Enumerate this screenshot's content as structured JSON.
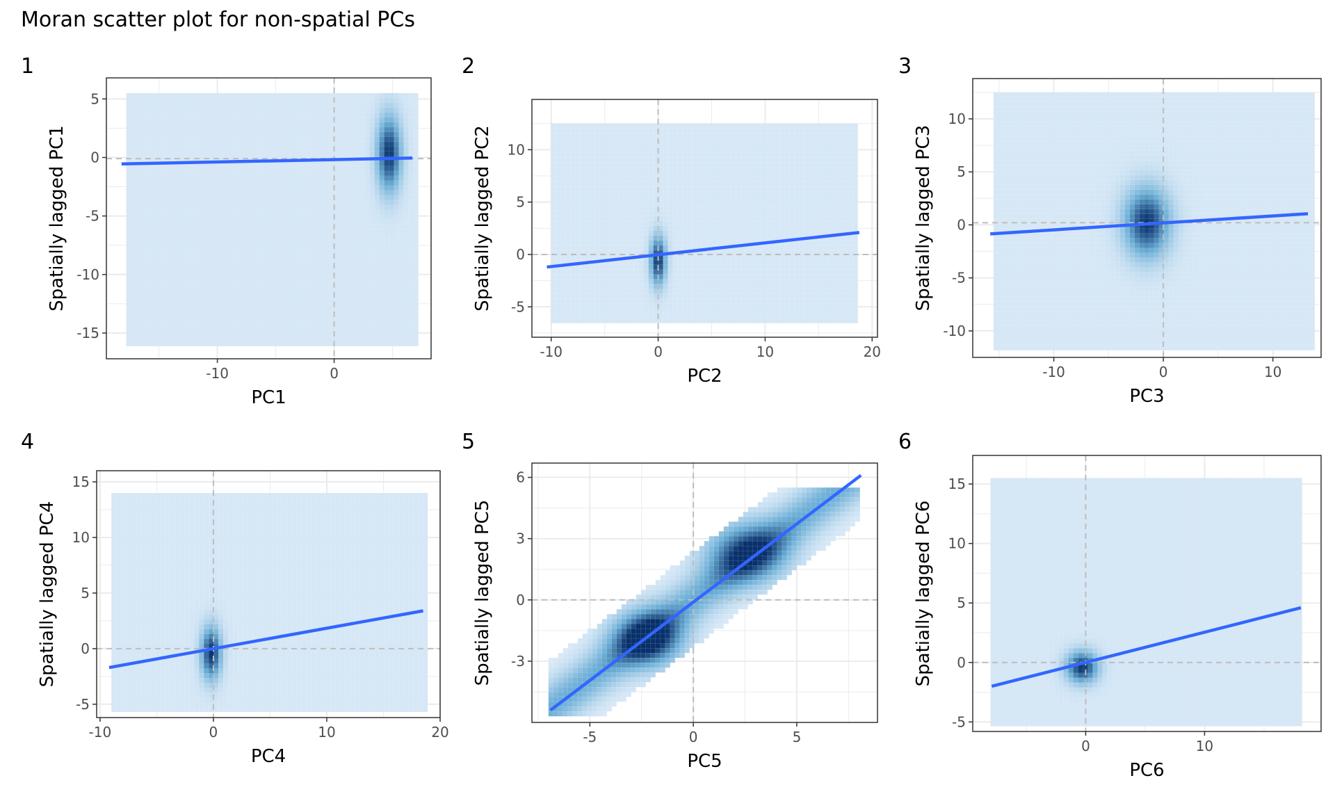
{
  "figure": {
    "title": "Moran scatter plot for non-spatial PCs"
  },
  "colors": {
    "fit_line": "#3366FF",
    "reference_line": "#BDBDBD",
    "density_low": "#EAF2FC",
    "density_high": "#08306B",
    "grid": "#EBEBEB",
    "panel_border": "#333333"
  },
  "chart_data": [
    {
      "panel": "1",
      "type": "scatter",
      "xlabel": "PC1",
      "ylabel": "Spatially lagged PC1",
      "xlim": [
        -19.5,
        8.3
      ],
      "ylim": [
        -17.2,
        6.8
      ],
      "xticks": [
        -10,
        0
      ],
      "yticks": [
        -15,
        -10,
        -5,
        0,
        5
      ],
      "x_range": [
        -17.8,
        6.8
      ],
      "y_range": [
        -16.0,
        5.5
      ],
      "fit_line": {
        "x": [
          -18.2,
          6.7
        ],
        "y": [
          -0.55,
          -0.05
        ]
      },
      "reference_lines": {
        "x": 0,
        "y": -0.1
      },
      "clusters": [
        {
          "x": 4.7,
          "y": 0.3,
          "sx": 0.7,
          "sy": 2.2,
          "w": 1.0
        }
      ]
    },
    {
      "panel": "2",
      "type": "scatter",
      "xlabel": "PC2",
      "ylabel": "Spatially lagged PC2",
      "xlim": [
        -11.8,
        20.5
      ],
      "ylim": [
        -7.9,
        14.8
      ],
      "xticks": [
        -10,
        0,
        10,
        20
      ],
      "yticks": [
        -5,
        0,
        5,
        10
      ],
      "x_range": [
        -10.0,
        18.5
      ],
      "y_range": [
        -6.5,
        12.5
      ],
      "fit_line": {
        "x": [
          -10.4,
          18.8
        ],
        "y": [
          -1.2,
          2.1
        ]
      },
      "reference_lines": {
        "x": 0,
        "y": 0
      },
      "clusters": [
        {
          "x": 0.0,
          "y": -0.6,
          "sx": 0.5,
          "sy": 1.6,
          "w": 1.0
        }
      ]
    },
    {
      "panel": "3",
      "type": "scatter",
      "xlabel": "PC3",
      "ylabel": "Spatially lagged PC3",
      "xlim": [
        -17.4,
        14.4
      ],
      "ylim": [
        -12.5,
        13.8
      ],
      "xticks": [
        -10,
        0,
        10
      ],
      "yticks": [
        -10,
        -5,
        0,
        5,
        10
      ],
      "x_range": [
        -15.5,
        13.5
      ],
      "y_range": [
        -11.5,
        12.5
      ],
      "fit_line": {
        "x": [
          -15.8,
          13.2
        ],
        "y": [
          -0.85,
          1.05
        ]
      },
      "reference_lines": {
        "x": 0,
        "y": 0.2
      },
      "clusters": [
        {
          "x": -1.5,
          "y": 0.2,
          "sx": 1.4,
          "sy": 2.2,
          "w": 1.0
        }
      ]
    },
    {
      "panel": "4",
      "type": "scatter",
      "xlabel": "PC4",
      "ylabel": "Spatially lagged PC4",
      "xlim": [
        -10.3,
        20.0
      ],
      "ylim": [
        -6.2,
        16.0
      ],
      "xticks": [
        -10,
        0,
        10,
        20
      ],
      "yticks": [
        -5,
        0,
        5,
        10,
        15
      ],
      "x_range": [
        -9.0,
        18.5
      ],
      "y_range": [
        -5.5,
        14.0
      ],
      "fit_line": {
        "x": [
          -9.2,
          18.5
        ],
        "y": [
          -1.7,
          3.4
        ]
      },
      "reference_lines": {
        "x": 0,
        "y": 0
      },
      "clusters": [
        {
          "x": -0.2,
          "y": -0.4,
          "sx": 0.6,
          "sy": 1.6,
          "w": 1.0
        }
      ]
    },
    {
      "panel": "5",
      "type": "scatter",
      "xlabel": "PC5",
      "ylabel": "Spatially lagged PC5",
      "xlim": [
        -7.8,
        8.9
      ],
      "ylim": [
        -6.0,
        6.7
      ],
      "xticks": [
        -5,
        0,
        5
      ],
      "yticks": [
        -3,
        0,
        3,
        6
      ],
      "x_range": [
        -7.0,
        8.0
      ],
      "y_range": [
        -5.5,
        5.5
      ],
      "fit_line": {
        "x": [
          -6.9,
          8.1
        ],
        "y": [
          -5.4,
          6.1
        ]
      },
      "reference_lines": {
        "x": 0,
        "y": 0
      },
      "correlated": true,
      "slope": 0.77,
      "spread": 0.9,
      "clusters": [
        {
          "x": -2.2,
          "y": -1.9,
          "sx": 1.1,
          "sy": 0.9,
          "w": 1.0
        },
        {
          "x": 2.6,
          "y": 2.3,
          "sx": 1.3,
          "sy": 1.0,
          "w": 0.8
        }
      ]
    },
    {
      "panel": "6",
      "type": "scatter",
      "xlabel": "PC6",
      "ylabel": "Spatially lagged PC6",
      "xlim": [
        -9.5,
        19.8
      ],
      "ylim": [
        -5.8,
        17.4
      ],
      "xticks": [
        0,
        10
      ],
      "yticks": [
        -5,
        0,
        5,
        10,
        15
      ],
      "x_range": [
        -8.0,
        18.0
      ],
      "y_range": [
        -5.0,
        15.5
      ],
      "fit_line": {
        "x": [
          -7.9,
          18.1
        ],
        "y": [
          -2.0,
          4.6
        ]
      },
      "reference_lines": {
        "x": 0,
        "y": 0
      },
      "clusters": [
        {
          "x": -0.3,
          "y": -0.4,
          "sx": 0.9,
          "sy": 0.9,
          "w": 1.0
        }
      ]
    }
  ]
}
